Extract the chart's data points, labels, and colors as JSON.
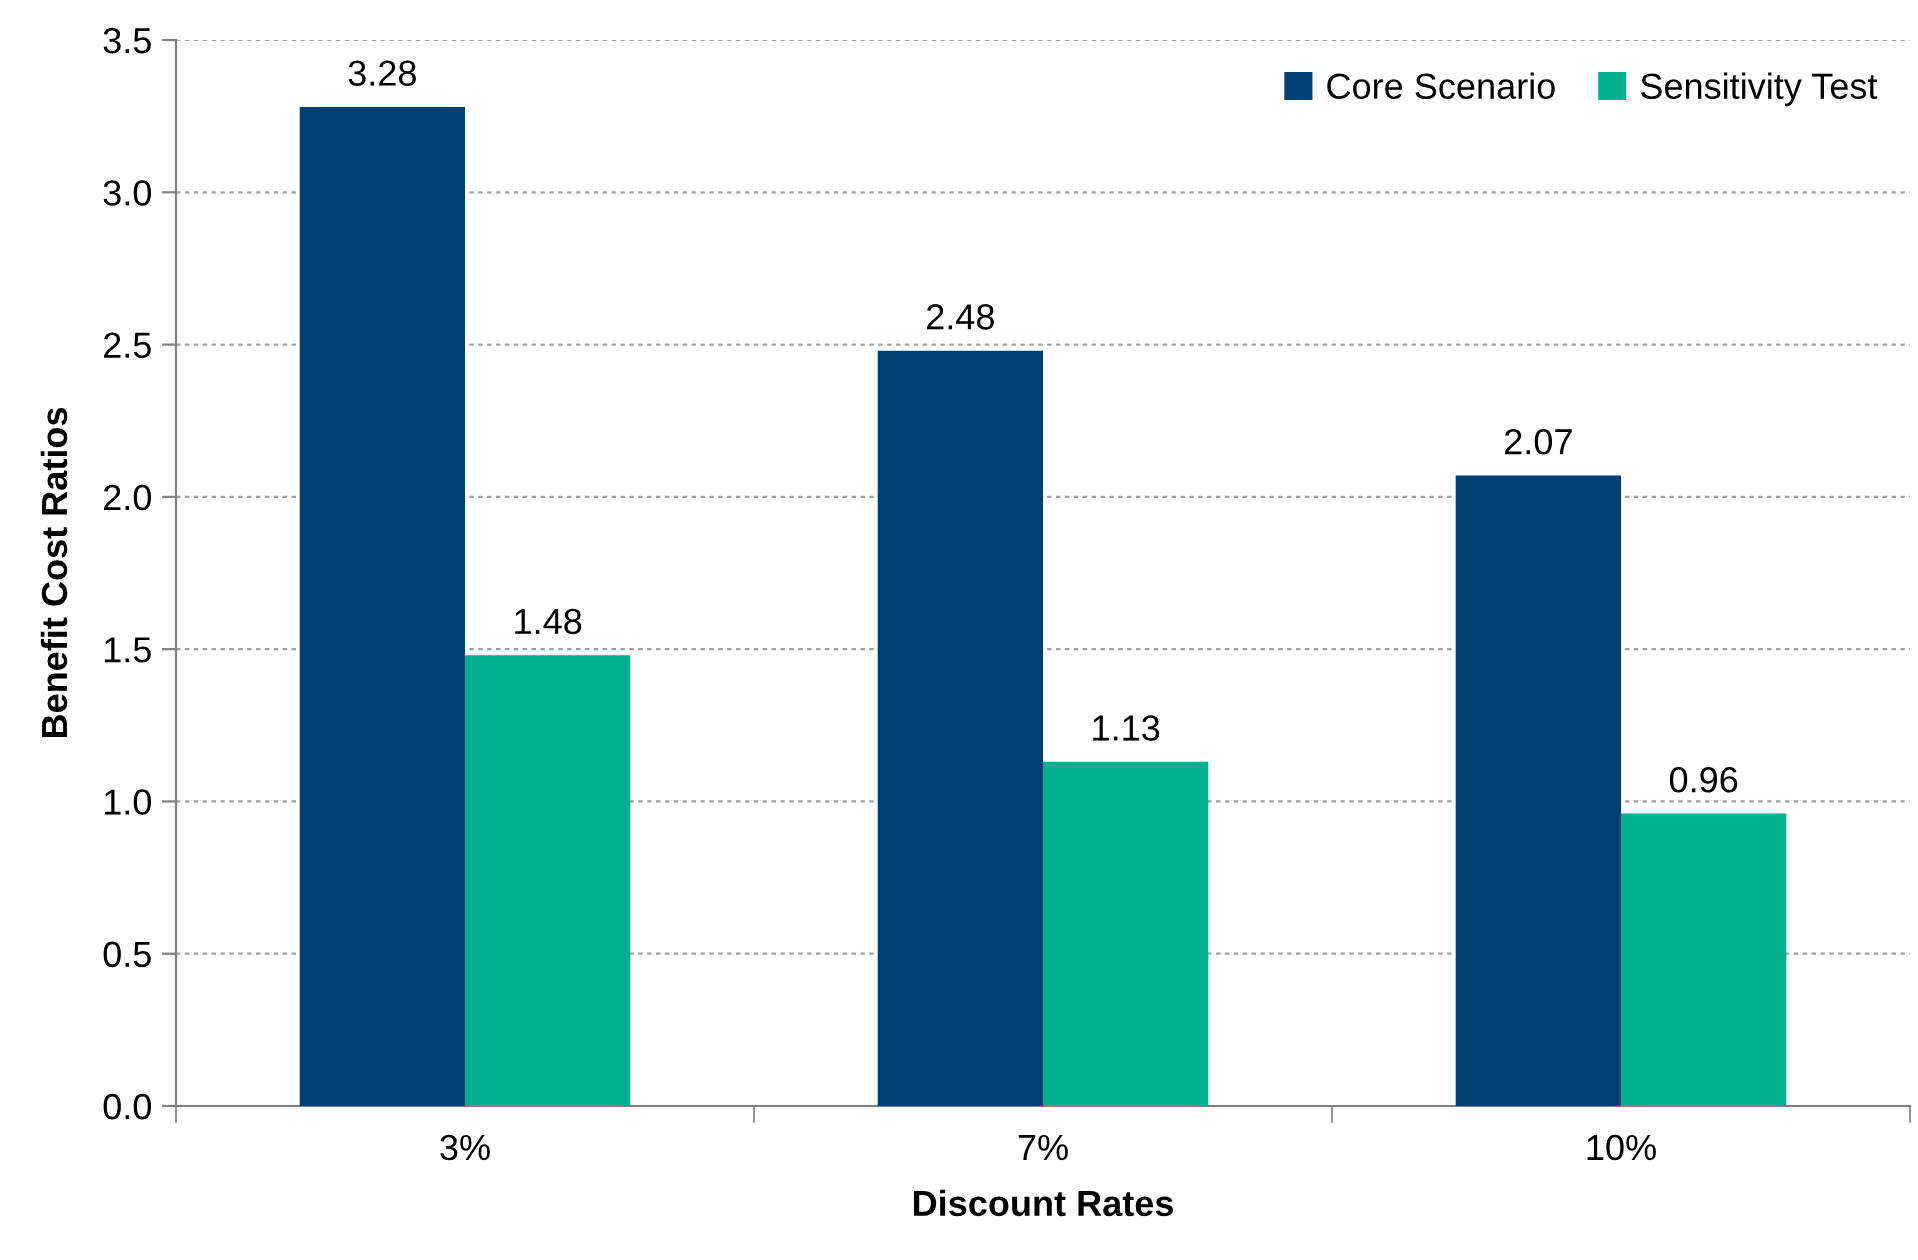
{
  "chart_data": {
    "type": "bar",
    "xlabel": "Discount Rates",
    "ylabel": "Benefit Cost Ratios",
    "categories": [
      "3%",
      "7%",
      "10%"
    ],
    "series": [
      {
        "name": "Core Scenario",
        "color": "#003f74",
        "values": [
          3.28,
          2.48,
          2.07
        ]
      },
      {
        "name": "Sensitivity Test",
        "color": "#00b08e",
        "values": [
          1.48,
          1.13,
          0.96
        ]
      }
    ],
    "ylim": [
      0,
      3.5
    ],
    "yticks": [
      {
        "value": 0,
        "label": "0.0"
      },
      {
        "value": 0.5,
        "label": "0.5"
      },
      {
        "value": 1,
        "label": "1.0"
      },
      {
        "value": 1.5,
        "label": "1.5"
      },
      {
        "value": 2,
        "label": "2.0"
      },
      {
        "value": 2.5,
        "label": "2.5"
      },
      {
        "value": 3,
        "label": "3.0"
      },
      {
        "value": 3.5,
        "label": "3.5"
      }
    ],
    "grid": "y",
    "legend": "top right",
    "data_labels": true
  }
}
